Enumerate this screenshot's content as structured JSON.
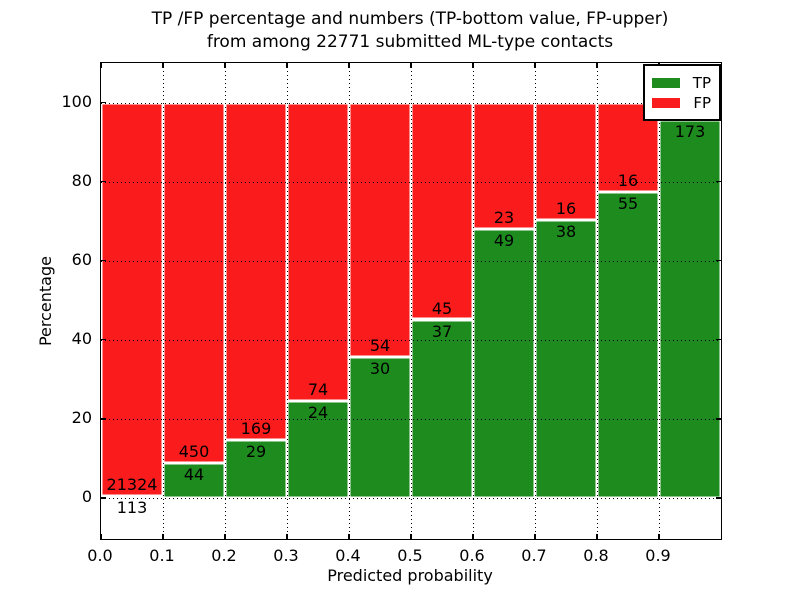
{
  "figure": {
    "title_line1": "TP /FP percentage and numbers (TP-bottom value, FP-upper)",
    "title_line2": "from among 22771 submitted ML-type contacts"
  },
  "axes": {
    "xlabel": "Predicted probability",
    "ylabel": "Percentage",
    "xtick_labels": [
      "0.0",
      "0.1",
      "0.2",
      "0.3",
      "0.4",
      "0.5",
      "0.6",
      "0.7",
      "0.8",
      "0.9"
    ],
    "ytick_labels": [
      "0",
      "20",
      "40",
      "60",
      "80",
      "100"
    ]
  },
  "legend": {
    "items": [
      {
        "label": "TP",
        "color": "#1e8b1e"
      },
      {
        "label": "FP",
        "color": "#fa1c1c"
      }
    ]
  },
  "colors": {
    "tp_green": "#1e8b1e",
    "fp_red": "#fa1c1c",
    "grid": "#000000"
  },
  "chart_data": {
    "type": "bar",
    "stacked": true,
    "normalized_to_percent": true,
    "title": "TP /FP percentage and numbers (TP-bottom value, FP-upper) from among 22771 submitted ML-type contacts",
    "xlabel": "Predicted probability",
    "ylabel": "Percentage",
    "xlim": [
      0.0,
      1.0
    ],
    "ylim": [
      -10.4,
      110.0
    ],
    "xticks": [
      0.0,
      0.1,
      0.2,
      0.3,
      0.4,
      0.5,
      0.6,
      0.7,
      0.8,
      0.9
    ],
    "yticks": [
      0,
      20,
      40,
      60,
      80,
      100
    ],
    "grid": "dotted",
    "legend_position": "upper right",
    "total_contacts": 22771,
    "series": [
      {
        "name": "TP",
        "color": "#1e8b1e",
        "position": "bottom"
      },
      {
        "name": "FP",
        "color": "#fa1c1c",
        "position": "top"
      }
    ],
    "bins": [
      {
        "x_range": [
          0.0,
          0.1
        ],
        "tp": 113,
        "fp": 21324,
        "tp_pct": 0.53,
        "tp_label": "113",
        "fp_label": "21324"
      },
      {
        "x_range": [
          0.1,
          0.2
        ],
        "tp": 44,
        "fp": 450,
        "tp_pct": 8.91,
        "tp_label": "44",
        "fp_label": "450"
      },
      {
        "x_range": [
          0.2,
          0.3
        ],
        "tp": 29,
        "fp": 169,
        "tp_pct": 14.65,
        "tp_label": "29",
        "fp_label": "169"
      },
      {
        "x_range": [
          0.3,
          0.4
        ],
        "tp": 24,
        "fp": 74,
        "tp_pct": 24.49,
        "tp_label": "24",
        "fp_label": "74"
      },
      {
        "x_range": [
          0.4,
          0.5
        ],
        "tp": 30,
        "fp": 54,
        "tp_pct": 35.71,
        "tp_label": "30",
        "fp_label": "54"
      },
      {
        "x_range": [
          0.5,
          0.6
        ],
        "tp": 37,
        "fp": 45,
        "tp_pct": 45.12,
        "tp_label": "37",
        "fp_label": "45"
      },
      {
        "x_range": [
          0.6,
          0.7
        ],
        "tp": 49,
        "fp": 23,
        "tp_pct": 68.06,
        "tp_label": "49",
        "fp_label": "23"
      },
      {
        "x_range": [
          0.7,
          0.8
        ],
        "tp": 38,
        "fp": 16,
        "tp_pct": 70.37,
        "tp_label": "38",
        "fp_label": "16"
      },
      {
        "x_range": [
          0.8,
          0.9
        ],
        "tp": 55,
        "fp": 16,
        "tp_pct": 77.46,
        "tp_label": "55",
        "fp_label": "16"
      },
      {
        "x_range": [
          0.9,
          1.0
        ],
        "tp": 173,
        "tp_pct": 95.58,
        "tp_label": "173",
        "fp_label": "",
        "fp_label_hidden_behind_legend": true
      }
    ]
  }
}
